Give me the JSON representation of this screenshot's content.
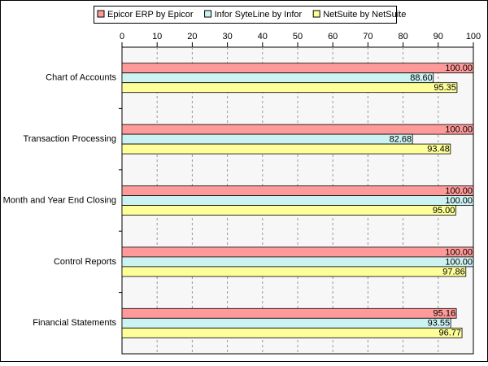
{
  "chart_data": {
    "type": "hbar",
    "categories": [
      "Chart of Accounts",
      "Transaction Processing",
      "Month and Year End Closing",
      "Control Reports",
      "Financial Statements"
    ],
    "series": [
      {
        "name": "Epicor ERP by Epicor",
        "color": "#ff9a9a",
        "values": [
          100,
          100,
          100,
          100,
          95.16
        ],
        "value_labels": [
          "100.00",
          "100.00",
          "100.00",
          "100.00",
          "95.16"
        ]
      },
      {
        "name": "Infor SyteLine by Infor",
        "color": "#ccf2f2",
        "values": [
          88.6,
          82.68,
          100,
          100,
          93.55
        ],
        "value_labels": [
          "88.60",
          "82.68",
          "100.00",
          "100.00",
          "93.55"
        ]
      },
      {
        "name": "NetSuite by NetSuite",
        "color": "#ffff99",
        "values": [
          95.35,
          93.48,
          95,
          97.86,
          96.77
        ],
        "value_labels": [
          "95.35",
          "93.48",
          "95.00",
          "97.86",
          "96.77"
        ]
      }
    ],
    "xlim": [
      0,
      100
    ],
    "xticks": [
      0,
      10,
      20,
      30,
      40,
      50,
      60,
      70,
      80,
      90,
      100
    ],
    "grid": true,
    "legend": "top"
  }
}
